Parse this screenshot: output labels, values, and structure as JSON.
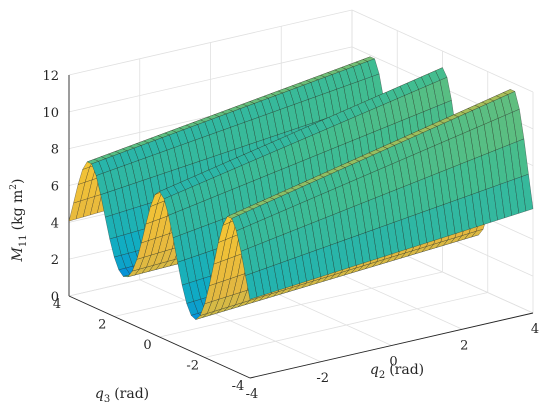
{
  "chart_data": {
    "type": "surface",
    "title": "",
    "zlabel": "M_11 (kg m^2)",
    "zlabel_parts": {
      "symbol": "M",
      "sub": "11",
      "unit_pre": "(kg m",
      "sup": "2",
      "unit_post": ")"
    },
    "xlabel_parts": {
      "symbol": "q",
      "sub": "2",
      "unit": "(rad)"
    },
    "ylabel_parts": {
      "symbol": "q",
      "sub": "3",
      "unit": "(rad)"
    },
    "xlim": [
      -4,
      4
    ],
    "ylim": [
      -4,
      4
    ],
    "zlim": [
      0,
      12
    ],
    "xticks": [
      "-4",
      "-2",
      "0",
      "2",
      "4"
    ],
    "yticks": [
      "-4",
      "-2",
      "0",
      "2",
      "4"
    ],
    "zticks": [
      "0",
      "2",
      "4",
      "6",
      "8",
      "10",
      "12"
    ],
    "grid": true,
    "colormap": "parula",
    "grid_resolution": 41,
    "surface_model": {
      "baseline": 1.5,
      "ridges": [
        {
          "y_center": -3.1,
          "z_at_x_max": 11.7,
          "z_at_x_min": 8.3
        },
        {
          "y_center": 0.0,
          "z_at_x_max": 11.1,
          "z_at_x_min": 7.9
        },
        {
          "y_center": 3.1,
          "z_at_x_max": 10.0,
          "z_at_x_min": 7.8
        }
      ],
      "ridge_width": 0.95
    }
  }
}
